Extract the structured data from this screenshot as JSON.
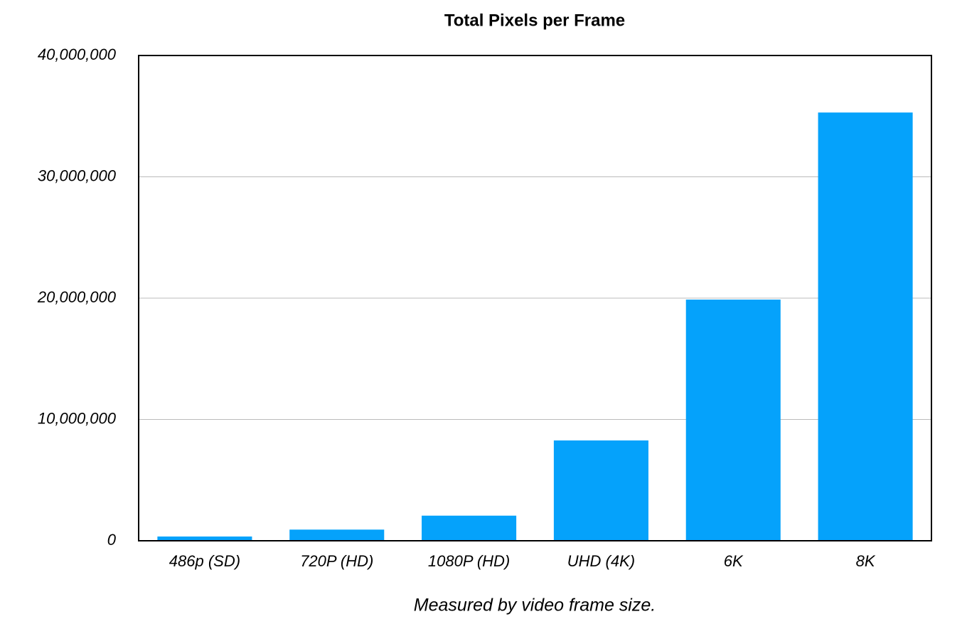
{
  "chart_data": {
    "type": "bar",
    "title": "Total Pixels per Frame",
    "x_label": "Measured by video frame size.",
    "categories": [
      "486p (SD)",
      "720P (HD)",
      "1080P (HD)",
      "UHD (4K)",
      "6K",
      "8K"
    ],
    "values": [
      350000,
      920000,
      2070000,
      8270000,
      19880000,
      35300000
    ],
    "color": "#05a2fb",
    "ylim": [
      0,
      40000000
    ],
    "yticks": [
      0,
      {
        "value": 10000000,
        "label": "10,000,000"
      },
      {
        "value": 20000000,
        "label": "20,000,000"
      },
      {
        "value": 30000000,
        "label": "30,000,000"
      },
      {
        "value": 40000000,
        "label": "40,000,000"
      }
    ],
    "grid": true
  }
}
